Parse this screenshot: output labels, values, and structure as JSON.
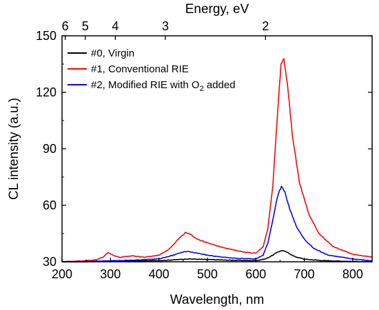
{
  "chart_data": {
    "type": "line",
    "xlabel": "Wavelength, nm",
    "ylabel": "CL intensity (a.u.)",
    "top_axis_label": "Energy, eV",
    "xlim": [
      200,
      840
    ],
    "ylim": [
      30,
      150
    ],
    "x_ticks": [
      200,
      300,
      400,
      500,
      600,
      700,
      800
    ],
    "y_ticks": [
      30,
      60,
      90,
      120,
      150
    ],
    "top_ticks": [
      6,
      5,
      4,
      3,
      2
    ],
    "legend_position": "top-left",
    "series": [
      {
        "name": "#0, Virgin",
        "legend_main": "#0, Virgin",
        "legend_sub": "",
        "legend_after": "",
        "color": "#000000",
        "points": [
          [
            200,
            30
          ],
          [
            250,
            30
          ],
          [
            300,
            30.5
          ],
          [
            350,
            30.4
          ],
          [
            400,
            30.6
          ],
          [
            440,
            31.2
          ],
          [
            460,
            31.5
          ],
          [
            500,
            31.2
          ],
          [
            550,
            30.8
          ],
          [
            600,
            30.6
          ],
          [
            620,
            31.5
          ],
          [
            635,
            33.5
          ],
          [
            645,
            35.2
          ],
          [
            655,
            36
          ],
          [
            665,
            35
          ],
          [
            680,
            32.8
          ],
          [
            700,
            31.4
          ],
          [
            740,
            30.6
          ],
          [
            800,
            30.2
          ],
          [
            840,
            30
          ]
        ]
      },
      {
        "name": "#1, Conventional RIE",
        "legend_main": "#1, Conventional RIE",
        "legend_sub": "",
        "legend_after": "",
        "color": "#ff0000",
        "points": [
          [
            200,
            30
          ],
          [
            240,
            30.5
          ],
          [
            270,
            31
          ],
          [
            285,
            32.5
          ],
          [
            295,
            35
          ],
          [
            305,
            33.5
          ],
          [
            320,
            32.3
          ],
          [
            345,
            33.2
          ],
          [
            370,
            32.4
          ],
          [
            400,
            33.5
          ],
          [
            420,
            36.5
          ],
          [
            440,
            42
          ],
          [
            455,
            45.5
          ],
          [
            465,
            44.5
          ],
          [
            480,
            42
          ],
          [
            500,
            40
          ],
          [
            520,
            38.5
          ],
          [
            550,
            36.5
          ],
          [
            580,
            35
          ],
          [
            600,
            34.5
          ],
          [
            615,
            38
          ],
          [
            625,
            48
          ],
          [
            635,
            70
          ],
          [
            645,
            110
          ],
          [
            652,
            135
          ],
          [
            658,
            138
          ],
          [
            665,
            125
          ],
          [
            675,
            98
          ],
          [
            690,
            72
          ],
          [
            710,
            55
          ],
          [
            730,
            45
          ],
          [
            760,
            38
          ],
          [
            800,
            34
          ],
          [
            840,
            32.5
          ]
        ]
      },
      {
        "name": "#2, Modified RIE with O2 added",
        "legend_main": "#2, Modified RIE with O",
        "legend_sub": "2",
        "legend_after": " added",
        "color": "#0000ff",
        "points": [
          [
            200,
            30
          ],
          [
            250,
            30.2
          ],
          [
            300,
            30.5
          ],
          [
            350,
            30.9
          ],
          [
            400,
            31.5
          ],
          [
            430,
            33.5
          ],
          [
            450,
            35.2
          ],
          [
            460,
            35.5
          ],
          [
            480,
            34.5
          ],
          [
            500,
            33.5
          ],
          [
            530,
            32.5
          ],
          [
            560,
            31.8
          ],
          [
            600,
            31.5
          ],
          [
            615,
            33.5
          ],
          [
            625,
            40
          ],
          [
            635,
            52
          ],
          [
            645,
            65
          ],
          [
            653,
            70
          ],
          [
            660,
            67
          ],
          [
            670,
            58
          ],
          [
            685,
            48
          ],
          [
            700,
            42
          ],
          [
            720,
            37
          ],
          [
            750,
            33.5
          ],
          [
            800,
            31.5
          ],
          [
            840,
            30.5
          ]
        ]
      }
    ]
  }
}
